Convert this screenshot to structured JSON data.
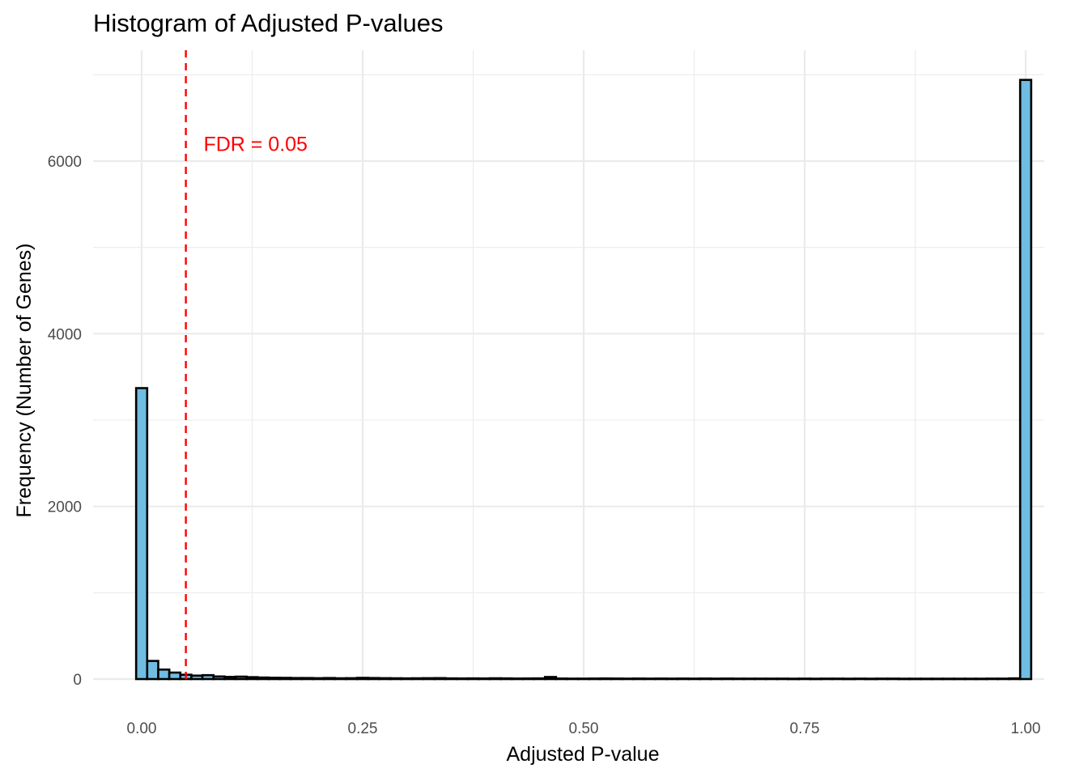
{
  "chart_data": {
    "type": "bar",
    "title": "Histogram of Adjusted P-values",
    "xlabel": "Adjusted P-value",
    "ylabel": "Frequency (Number of Genes)",
    "xlim": [
      -0.0125,
      1.0125
    ],
    "ylim": [
      0,
      6936
    ],
    "x_ticks": [
      0,
      0.25,
      0.5,
      0.75,
      1
    ],
    "x_tick_labels": [
      "0.00",
      "0.25",
      "0.50",
      "0.75",
      "1.00"
    ],
    "y_ticks": [
      0,
      2000,
      4000,
      6000
    ],
    "y_tick_labels": [
      "0",
      "2000",
      "4000",
      "6000"
    ],
    "bin_width": 0.0125,
    "bin_centers": [
      0.0,
      0.0125,
      0.025,
      0.0375,
      0.05,
      0.0625,
      0.075,
      0.0875,
      0.1,
      0.1125,
      0.125,
      0.1375,
      0.15,
      0.1625,
      0.175,
      0.1875,
      0.2,
      0.2125,
      0.225,
      0.2375,
      0.25,
      0.2625,
      0.275,
      0.2875,
      0.3,
      0.3125,
      0.325,
      0.3375,
      0.35,
      0.3625,
      0.375,
      0.3875,
      0.4,
      0.4125,
      0.425,
      0.4375,
      0.45,
      0.4625,
      0.475,
      0.4875,
      0.5,
      0.5125,
      0.525,
      0.5375,
      0.55,
      0.5625,
      0.575,
      0.5875,
      0.6,
      0.6125,
      0.625,
      0.6375,
      0.65,
      0.6625,
      0.675,
      0.6875,
      0.7,
      0.7125,
      0.725,
      0.7375,
      0.75,
      0.7625,
      0.775,
      0.7875,
      0.8,
      0.8125,
      0.825,
      0.8375,
      0.85,
      0.8625,
      0.875,
      0.8875,
      0.9,
      0.9125,
      0.925,
      0.9375,
      0.95,
      0.9625,
      0.975,
      0.9875,
      1.0
    ],
    "values": [
      3370,
      210,
      110,
      75,
      50,
      40,
      45,
      30,
      25,
      28,
      22,
      18,
      15,
      14,
      12,
      12,
      10,
      12,
      9,
      10,
      14,
      12,
      10,
      9,
      8,
      9,
      10,
      11,
      8,
      7,
      8,
      7,
      9,
      8,
      6,
      7,
      8,
      24,
      6,
      5,
      5,
      6,
      7,
      6,
      5,
      6,
      5,
      6,
      5,
      6,
      5,
      6,
      5,
      6,
      5,
      5,
      5,
      5,
      5,
      4,
      5,
      4,
      5,
      5,
      4,
      5,
      4,
      5,
      5,
      4,
      4,
      4,
      4,
      4,
      4,
      4,
      4,
      5,
      5,
      8,
      6940
    ],
    "fill_color": "#6fbde2",
    "annotation": {
      "label": "FDR = 0.05",
      "x": 0.07,
      "y": 6200,
      "vline_x": 0.05,
      "color": "#ff0000"
    },
    "grid": true,
    "legend": "none"
  }
}
